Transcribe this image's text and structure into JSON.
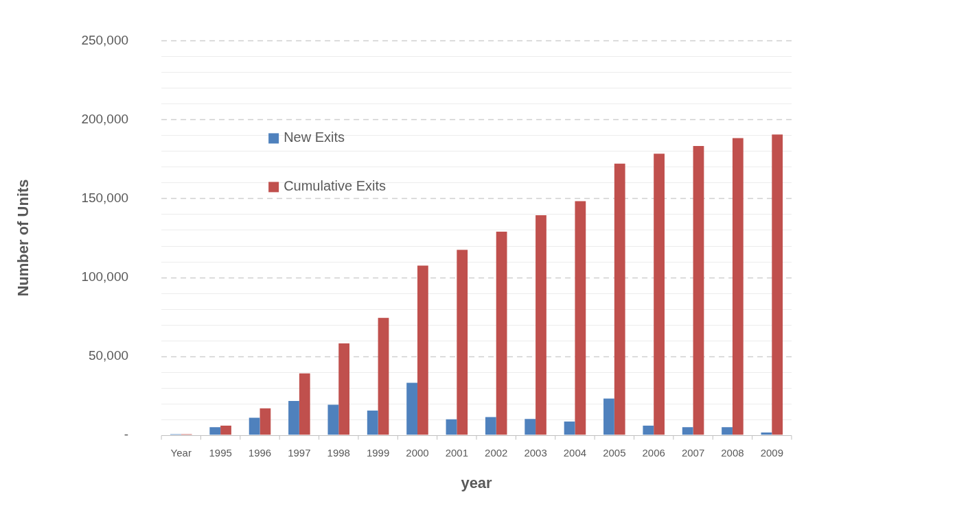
{
  "chart_data": {
    "type": "bar",
    "xlabel": "year",
    "ylabel": "Number of Units",
    "categories": [
      "Year",
      "1995",
      "1996",
      "1997",
      "1998",
      "1999",
      "2000",
      "2001",
      "2002",
      "2003",
      "2004",
      "2005",
      "2006",
      "2007",
      "2008",
      "2009"
    ],
    "series": [
      {
        "name": "New Exits",
        "color": "#4f81bd",
        "values": [
          500,
          4900,
          10900,
          21600,
          19200,
          15500,
          33100,
          9900,
          11300,
          10200,
          8500,
          23100,
          5900,
          4900,
          4900,
          1600
        ]
      },
      {
        "name": "Cumulative Exits",
        "color": "#c0504d",
        "values": [
          500,
          5900,
          16900,
          39100,
          58100,
          74300,
          107400,
          117400,
          128900,
          139300,
          148200,
          172000,
          178300,
          183200,
          188200,
          190500
        ]
      }
    ],
    "ylim": [
      0,
      250000
    ],
    "yticks": [
      {
        "value": 0,
        "label": "-"
      },
      {
        "value": 10000,
        "label": null
      },
      {
        "value": 20000,
        "label": null
      },
      {
        "value": 30000,
        "label": null
      },
      {
        "value": 40000,
        "label": null
      },
      "50,000",
      {
        "value": 60000,
        "label": null
      },
      {
        "value": 70000,
        "label": null
      },
      {
        "value": 80000,
        "label": null
      },
      {
        "value": 90000,
        "label": null
      },
      {
        "value": 100000,
        "label": "100,000"
      },
      {
        "value": 110000,
        "label": null
      },
      {
        "value": 120000,
        "label": null
      },
      {
        "value": 130000,
        "label": null
      },
      {
        "value": 140000,
        "label": null
      },
      {
        "value": 150000,
        "label": "150,000"
      },
      {
        "value": 160000,
        "label": null
      },
      {
        "value": 170000,
        "label": null
      },
      {
        "value": 180000,
        "label": null
      },
      {
        "value": 190000,
        "label": null
      },
      {
        "value": 200000,
        "label": "200,000"
      },
      {
        "value": 210000,
        "label": null
      },
      {
        "value": 220000,
        "label": null
      },
      {
        "value": 230000,
        "label": null
      },
      {
        "value": 240000,
        "label": null
      },
      {
        "value": 250000,
        "label": "250,000"
      }
    ],
    "grid": "y",
    "legend": "top left"
  }
}
